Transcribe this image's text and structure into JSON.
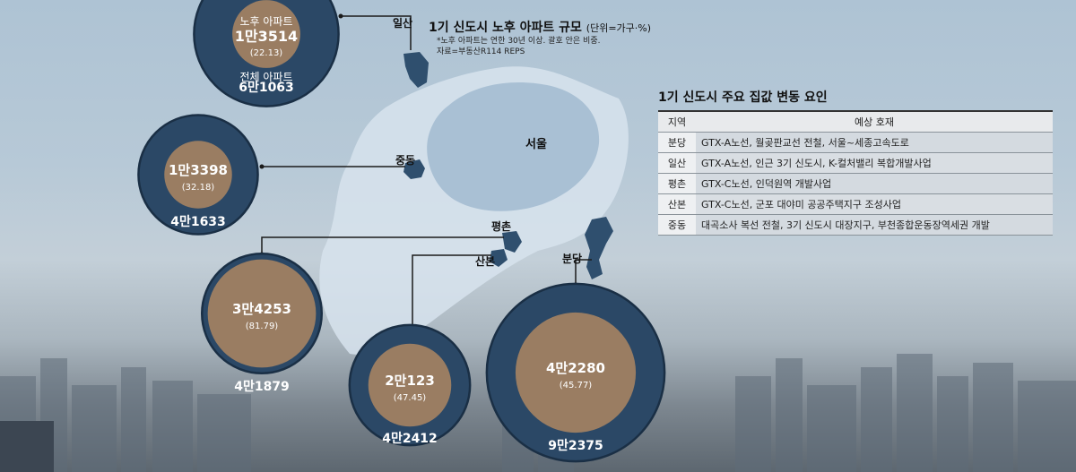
{
  "chart_data": {
    "type": "bubble",
    "title": "1기 신도시 노후 아파트 규모",
    "unit": "(단위=가구·%)",
    "notes": [
      "*노후 아파트는 연한 30년 이상. 괄호 안은 비중.",
      "자료=부동산R114 REPS"
    ],
    "series_labels": {
      "old": "노후 아파트",
      "total": "전체 아파트"
    },
    "map_labels": [
      "서울"
    ],
    "colors": {
      "outer": "#2b4866",
      "outer_ring": "#1a2f45",
      "inner": "#9a7d62",
      "text": "#ffffff"
    },
    "regions": [
      {
        "name": "일산",
        "old": 13514,
        "old_label": "1만3514",
        "share": "(22.13)",
        "total": 61063,
        "total_label": "6만1063"
      },
      {
        "name": "중동",
        "old": 13398,
        "old_label": "1만3398",
        "share": "(32.18)",
        "total": 41633,
        "total_label": "4만1633"
      },
      {
        "name": "평촌",
        "old": 34253,
        "old_label": "3만4253",
        "share": "(81.79)",
        "total": 41879,
        "total_label": "4만1879"
      },
      {
        "name": "산본",
        "old": 20123,
        "old_label": "2만123",
        "share": "(47.45)",
        "total": 42412,
        "total_label": "4만2412"
      },
      {
        "name": "분당",
        "old": 42280,
        "old_label": "4만2280",
        "share": "(45.77)",
        "total": 92375,
        "total_label": "9만2375"
      }
    ]
  },
  "factors": {
    "title": "1기 신도시 주요 집값 변동 요인",
    "headers": [
      "지역",
      "예상 호재"
    ],
    "rows": [
      {
        "region": "분당",
        "desc": "GTX-A노선, 월곶판교선 전철, 서울~세종고속도로"
      },
      {
        "region": "일산",
        "desc": "GTX-A노선, 인근 3기 신도시, K-컬처밸리 복합개발사업"
      },
      {
        "region": "평촌",
        "desc": "GTX-C노선, 인덕원역 개발사업"
      },
      {
        "region": "산본",
        "desc": "GTX-C노선, 군포 대야미 공공주택지구 조성사업"
      },
      {
        "region": "중동",
        "desc": "대곡소사 복선 전철, 3기 신도시 대장지구, 부천종합운동장역세권 개발"
      }
    ]
  }
}
